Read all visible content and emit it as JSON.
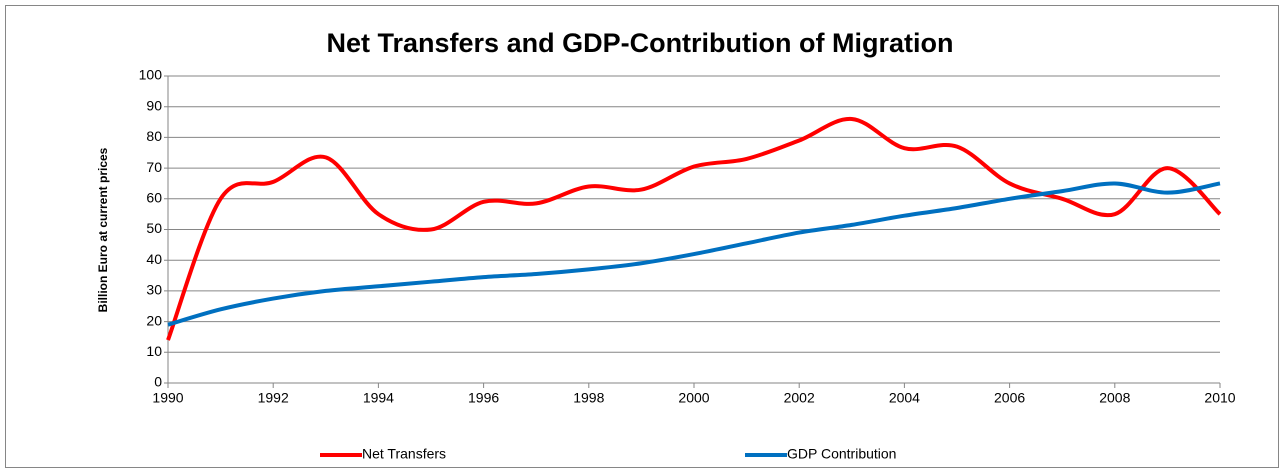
{
  "chart_data": {
    "type": "line",
    "title": "Net Transfers and GDP-Contribution of Migration",
    "y_label": "Billion Euro at current prices",
    "x": [
      1990,
      1991,
      1992,
      1993,
      1994,
      1995,
      1996,
      1997,
      1998,
      1999,
      2000,
      2001,
      2002,
      2003,
      2004,
      2005,
      2006,
      2007,
      2008,
      2009,
      2010
    ],
    "series": [
      {
        "name": "Net Transfers",
        "color": "#ff0000",
        "values": [
          14,
          60,
          65.5,
          73.5,
          55,
          50,
          59,
          58.5,
          64,
          63,
          70.5,
          73,
          79,
          86,
          76.5,
          77,
          65,
          60,
          55,
          70,
          55
        ]
      },
      {
        "name": "GDP Contribution",
        "color": "#0070c0",
        "values": [
          19,
          24,
          27.5,
          30,
          31.5,
          33,
          34.5,
          35.5,
          37,
          39,
          42,
          45.5,
          49,
          51.5,
          54.5,
          57,
          60,
          62.5,
          65,
          62,
          65
        ]
      }
    ],
    "xlim": [
      1990,
      2010
    ],
    "xticks": [
      1990,
      1992,
      1994,
      1996,
      1998,
      2000,
      2002,
      2004,
      2006,
      2008,
      2010
    ],
    "ylim": [
      0,
      100
    ],
    "yticks": [
      0,
      10,
      20,
      30,
      40,
      50,
      60,
      70,
      80,
      90,
      100
    ],
    "grid": true,
    "smooth": true,
    "legend": "bottom"
  }
}
